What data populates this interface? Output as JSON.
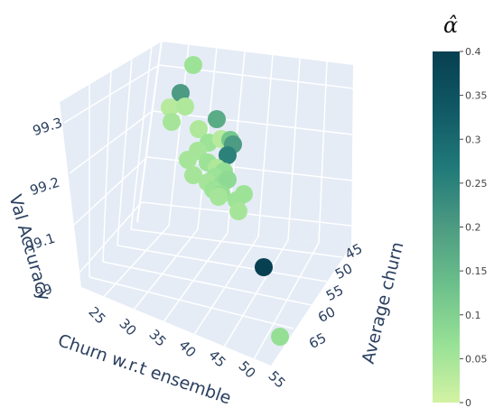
{
  "chart_data": {
    "type": "scatter",
    "subtype": "3d-scatter",
    "x_axis": {
      "label": "Churn w.r.t ensemble",
      "ticks": [
        25,
        30,
        35,
        40,
        45,
        50,
        55
      ],
      "range": [
        22,
        58
      ]
    },
    "y_axis": {
      "label": "Average churn",
      "ticks": [
        45,
        50,
        55,
        60,
        65
      ],
      "range": [
        42,
        68
      ]
    },
    "z_axis": {
      "label": "Val Accuracy",
      "ticks": [
        99,
        99.1,
        99.2,
        99.3
      ],
      "range": [
        98.96,
        99.34
      ]
    },
    "color_axis": {
      "title": "α̂",
      "ticks": [
        0,
        0.05,
        0.1,
        0.15,
        0.2,
        0.25,
        0.3,
        0.35,
        0.4
      ],
      "range": [
        0,
        0.4
      ],
      "colorscale": [
        "#d3f2a3",
        "#97e196",
        "#6cc08b",
        "#4c9b82",
        "#217a79",
        "#105965",
        "#074050"
      ]
    },
    "grid": true,
    "background": "#e5ecf6",
    "points": [
      {
        "alpha": 0.06
      },
      {
        "alpha": 0.2
      },
      {
        "alpha": 0.03
      },
      {
        "alpha": 0.04
      },
      {
        "alpha": 0.05
      },
      {
        "alpha": 0.17
      },
      {
        "alpha": 0.04
      },
      {
        "alpha": 0.06
      },
      {
        "alpha": 0.03
      },
      {
        "alpha": 0.12
      },
      {
        "alpha": 0.2
      },
      {
        "alpha": 0.05
      },
      {
        "alpha": 0.25
      },
      {
        "alpha": 0.05
      },
      {
        "alpha": 0.06
      },
      {
        "alpha": 0.04
      },
      {
        "alpha": 0.07
      },
      {
        "alpha": 0.06
      },
      {
        "alpha": 0.05
      },
      {
        "alpha": 0.07
      },
      {
        "alpha": 0.05
      },
      {
        "alpha": 0.08
      },
      {
        "alpha": 0.06
      },
      {
        "alpha": 0.07
      },
      {
        "alpha": 0.05
      },
      {
        "alpha": 0.06
      },
      {
        "alpha": 0.06
      },
      {
        "alpha": 0.05
      },
      {
        "alpha": 0.4
      },
      {
        "alpha": 0.07
      }
    ]
  }
}
